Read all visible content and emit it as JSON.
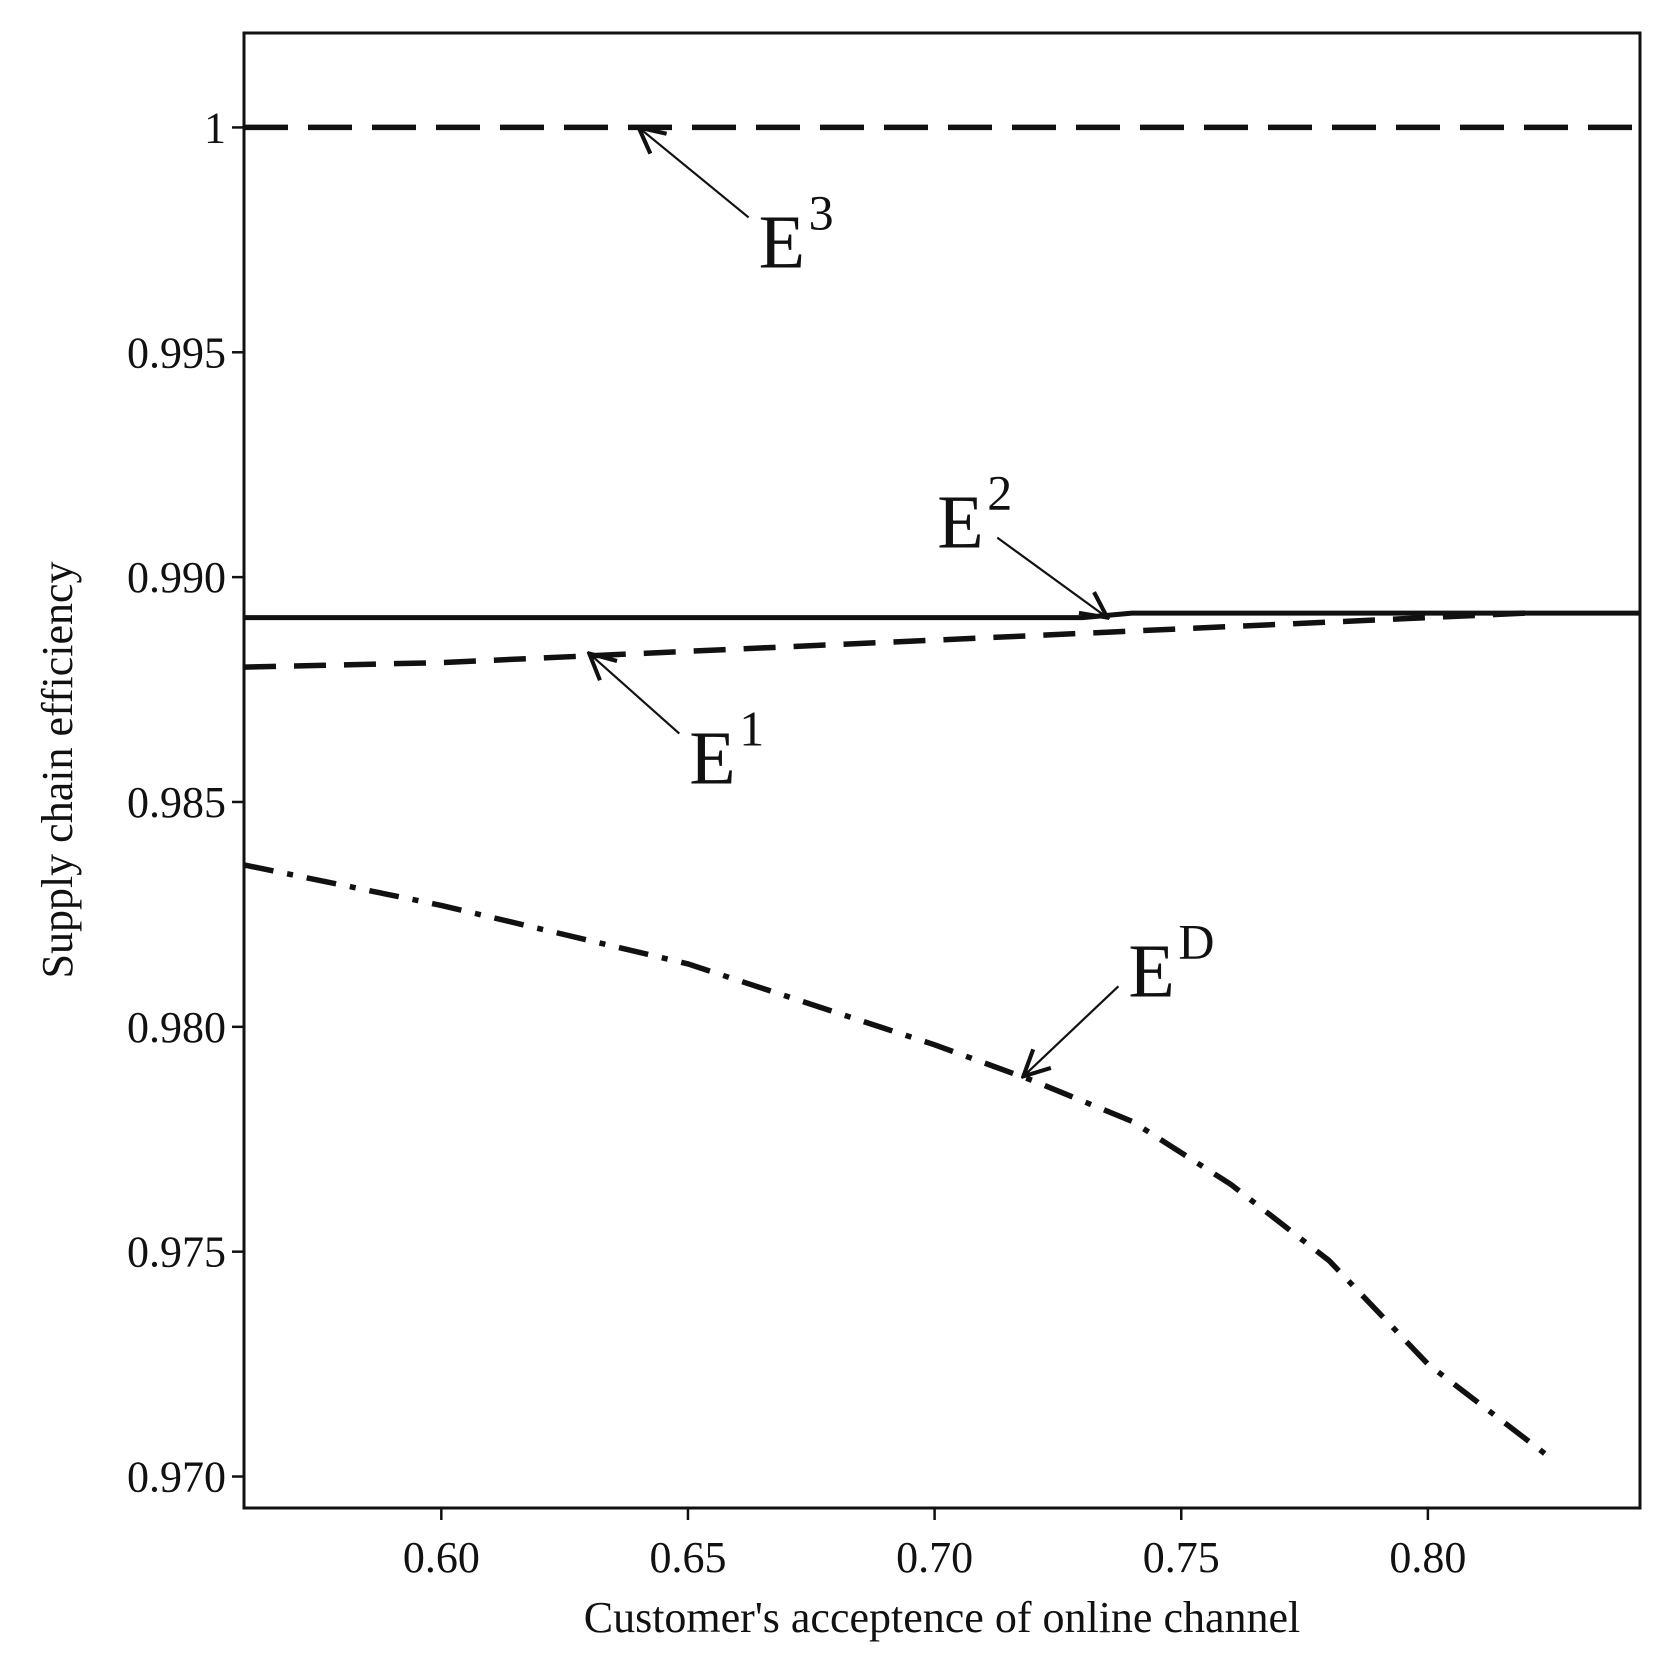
{
  "chart_data": {
    "type": "line",
    "title": "",
    "xlabel": "Customer's acceptence of online channel",
    "ylabel": "Supply chain efficiency",
    "xlim": [
      0.56,
      0.843
    ],
    "ylim": [
      0.9693,
      1.0021
    ],
    "x_ticks": [
      0.6,
      0.65,
      0.7,
      0.75,
      0.8
    ],
    "x_tick_labels": [
      "0.60",
      "0.65",
      "0.70",
      "0.75",
      "0.80"
    ],
    "y_ticks": [
      0.97,
      0.975,
      0.98,
      0.985,
      0.99,
      0.995,
      1.0
    ],
    "y_tick_labels": [
      "0.970",
      "0.975",
      "0.980",
      "0.985",
      "0.990",
      "0.995",
      "1"
    ],
    "grid": false,
    "legend": "none (inline callouts)",
    "series": [
      {
        "name": "E3",
        "style": "long-dash",
        "x": [
          0.56,
          0.843
        ],
        "y": [
          1.0,
          1.0
        ]
      },
      {
        "name": "E2",
        "style": "solid",
        "x": [
          0.56,
          0.6,
          0.65,
          0.7,
          0.73,
          0.74,
          0.843
        ],
        "y": [
          0.9891,
          0.9891,
          0.9891,
          0.9891,
          0.9891,
          0.9892,
          0.9892
        ]
      },
      {
        "name": "E1",
        "style": "dash",
        "x": [
          0.56,
          0.6,
          0.65,
          0.7,
          0.75,
          0.8,
          0.82
        ],
        "y": [
          0.988,
          0.9881,
          0.98835,
          0.9886,
          0.98885,
          0.9891,
          0.9892
        ]
      },
      {
        "name": "ED",
        "style": "dash-dot",
        "x": [
          0.56,
          0.6,
          0.65,
          0.7,
          0.72,
          0.74,
          0.76,
          0.78,
          0.8,
          0.825
        ],
        "y": [
          0.9836,
          0.9827,
          0.9814,
          0.9796,
          0.9788,
          0.9779,
          0.9765,
          0.9748,
          0.9725,
          0.9704
        ]
      }
    ],
    "annotations": [
      {
        "text": "E",
        "sup": "3",
        "target": [
          0.64,
          1.0
        ]
      },
      {
        "text": "E",
        "sup": "2",
        "target": [
          0.735,
          0.9891
        ]
      },
      {
        "text": "E",
        "sup": "1",
        "target": [
          0.63,
          0.9883
        ]
      },
      {
        "text": "E",
        "sup": "D",
        "target": [
          0.718,
          0.9789
        ]
      }
    ]
  }
}
